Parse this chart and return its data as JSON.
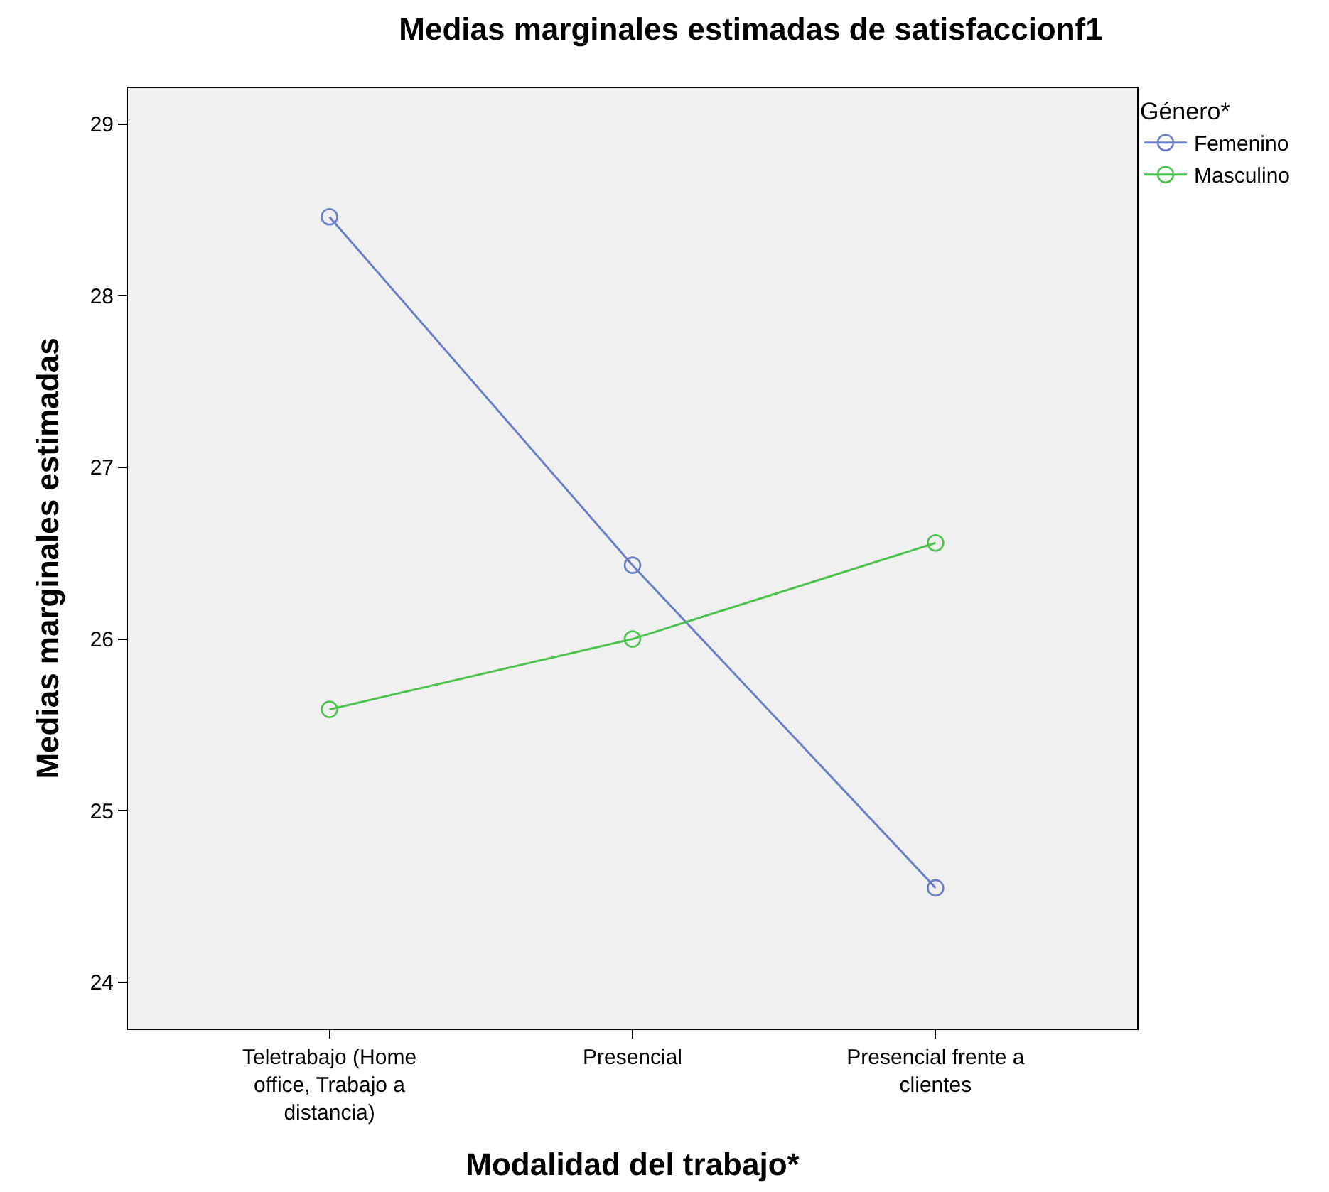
{
  "chart_data": {
    "type": "line",
    "title": "Medias marginales estimadas de satisfaccionf1",
    "xlabel": "Modalidad del trabajo*",
    "ylabel": "Medias marginales estimadas",
    "legend_title": "Género*",
    "categories": [
      "Teletrabajo (Home office, Trabajo a distancia)",
      "Presencial",
      "Presencial frente a clientes"
    ],
    "series": [
      {
        "name": "Femenino",
        "color": "#6b7fc8",
        "values": [
          28.46,
          26.43,
          24.55
        ]
      },
      {
        "name": "Masculino",
        "color": "#4ec24e",
        "values": [
          25.59,
          26.0,
          26.56
        ]
      }
    ],
    "ylim": [
      23.73,
      29.21
    ],
    "yticks": [
      24,
      25,
      26,
      27,
      28,
      29
    ],
    "grid": false,
    "legend": "top right",
    "marker": "circle",
    "line_style": "solid"
  }
}
